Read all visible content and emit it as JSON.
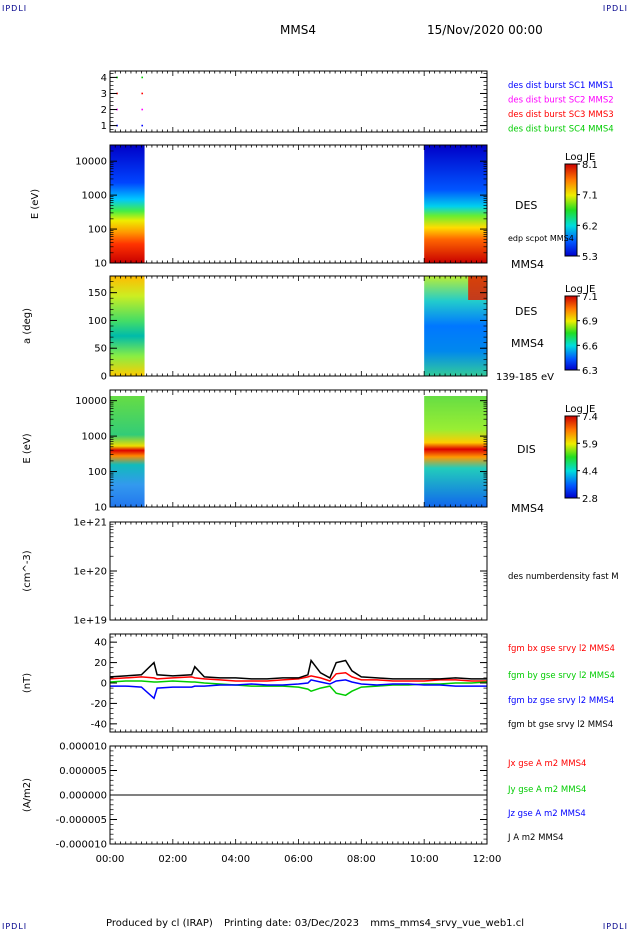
{
  "corners": {
    "tl": "IPDLI",
    "tr": "IPDLI",
    "bl": "IPDLI",
    "br": "IPDLI"
  },
  "header": {
    "spacecraft": "MMS4",
    "datetime": "15/Nov/2020 00:00"
  },
  "footer": {
    "produced_by": "Produced by cl (IRAP)",
    "printing_date": "Printing date: 03/Dec/2023",
    "filename": "mms_mms4_srvy_vue_web1.cl"
  },
  "colors": {
    "red": "#ff0000",
    "green": "#00cc00",
    "blue": "#0000ff",
    "magenta": "#ff00ff",
    "black": "#000000",
    "background": "#ffffff"
  },
  "chart_data": [
    {
      "type": "scatter",
      "panel": "burst-availability",
      "yticks": [
        "1",
        "2",
        "3",
        "4"
      ],
      "ylim": [
        0.6,
        4.4
      ],
      "series": [
        {
          "name": "des dist burst SC1 MMS1",
          "color": "#0000ff",
          "y": 1,
          "x_hours": [
            0.2,
            1.0
          ]
        },
        {
          "name": "des dist burst SC2 MMS2",
          "color": "#ff00ff",
          "y": 2,
          "x_hours": [
            0.2,
            1.0
          ]
        },
        {
          "name": "des dist burst SC3 MMS3",
          "color": "#ff0000",
          "y": 3,
          "x_hours": [
            0.2,
            1.0
          ]
        },
        {
          "name": "des dist burst SC4 MMS4",
          "color": "#00cc00",
          "y": 4,
          "x_hours": [
            0.2,
            1.0
          ]
        }
      ]
    },
    {
      "type": "heatmap",
      "panel": "des-energy",
      "ylabel": "E (eV)",
      "yscale": "log",
      "ylim": [
        10,
        30000
      ],
      "yticks": [
        "10",
        "100",
        "1000",
        "10000"
      ],
      "data_intervals_hours": [
        [
          0.0,
          1.1
        ],
        [
          10.0,
          12.0
        ]
      ],
      "labels": [
        "DES",
        "edp scpot MMS4",
        "MMS4"
      ],
      "colorbar": {
        "title": "Log JE",
        "ticks": [
          "8.1",
          "7.1",
          "6.2",
          "5.3"
        ]
      }
    },
    {
      "type": "heatmap",
      "panel": "des-pitch-angle",
      "ylabel": "a (deg)",
      "ylim": [
        0,
        180
      ],
      "yticks": [
        "0",
        "50",
        "100",
        "150"
      ],
      "data_intervals_hours": [
        [
          0.0,
          1.1
        ],
        [
          10.0,
          12.0
        ]
      ],
      "labels": [
        "DES",
        "MMS4",
        "139-185 eV"
      ],
      "colorbar": {
        "title": "Log JE",
        "ticks": [
          "7.1",
          "6.9",
          "6.6",
          "6.3"
        ]
      }
    },
    {
      "type": "heatmap",
      "panel": "dis-energy",
      "ylabel": "E (eV)",
      "yscale": "log",
      "ylim": [
        10,
        20000
      ],
      "yticks": [
        "10",
        "100",
        "1000",
        "10000"
      ],
      "data_intervals_hours": [
        [
          0.0,
          1.1
        ],
        [
          10.0,
          12.0
        ]
      ],
      "labels": [
        "DIS",
        "MMS4"
      ],
      "colorbar": {
        "title": "Log JE",
        "ticks": [
          "7.4",
          "5.9",
          "4.4",
          "2.8"
        ]
      }
    },
    {
      "type": "line",
      "panel": "density",
      "ylabel": "(cm^-3)",
      "yscale": "log",
      "ylim": [
        1e+19,
        1e+21
      ],
      "yticks": [
        "1e+19",
        "1e+20",
        "1e+21"
      ],
      "series": [
        {
          "name": "des numberdensity fast M",
          "color": "#000000",
          "x": [],
          "y": []
        }
      ]
    },
    {
      "type": "line",
      "panel": "magnetic-field",
      "ylabel": "(nT)",
      "ylim": [
        -48,
        48
      ],
      "yticks": [
        "-40",
        "-20",
        "0",
        "20",
        "40"
      ],
      "x_hours": [
        0,
        0.5,
        1.0,
        1.4,
        1.5,
        2.0,
        2.6,
        2.7,
        3.0,
        3.5,
        4.0,
        4.5,
        5.0,
        5.5,
        6.0,
        6.3,
        6.4,
        6.7,
        7.0,
        7.2,
        7.5,
        7.7,
        8.0,
        8.5,
        9.0,
        9.5,
        10.0,
        10.5,
        11.0,
        11.5,
        12.0
      ],
      "series": [
        {
          "name": "fgm bx gse srvy l2 MMS4",
          "color": "#ff0000",
          "values": [
            4,
            5,
            6,
            5,
            4,
            5,
            6,
            5,
            4,
            3,
            2,
            2,
            2,
            3,
            4,
            6,
            7,
            5,
            2,
            9,
            10,
            6,
            3,
            3,
            2,
            2,
            2,
            3,
            3,
            2,
            2
          ]
        },
        {
          "name": "fgm by gse srvy l2 MMS4",
          "color": "#00cc00",
          "values": [
            1,
            2,
            2,
            1,
            1,
            2,
            1,
            1,
            0,
            -1,
            -2,
            -3,
            -3,
            -3,
            -4,
            -6,
            -8,
            -5,
            -3,
            -10,
            -12,
            -8,
            -4,
            -3,
            -2,
            -2,
            -1,
            -1,
            0,
            0,
            1
          ]
        },
        {
          "name": "fgm bz gse srvy l2 MMS4",
          "color": "#0000ff",
          "values": [
            -3,
            -3,
            -4,
            -15,
            -5,
            -4,
            -4,
            -3,
            -3,
            -2,
            -2,
            -1,
            -2,
            -2,
            -1,
            0,
            3,
            1,
            -1,
            2,
            3,
            1,
            -1,
            -2,
            -1,
            -1,
            -2,
            -2,
            -3,
            -3,
            -3
          ]
        },
        {
          "name": "fgm bt gse srvy l2 MMS4",
          "color": "#000000",
          "values": [
            6,
            7,
            8,
            20,
            8,
            7,
            8,
            16,
            6,
            5,
            5,
            4,
            4,
            5,
            5,
            8,
            22,
            10,
            5,
            20,
            22,
            12,
            6,
            5,
            4,
            4,
            4,
            4,
            5,
            4,
            4
          ]
        }
      ]
    },
    {
      "type": "line",
      "panel": "current-density",
      "ylabel": "(A/m2)",
      "ylim": [
        -1e-05,
        1e-05
      ],
      "yticks": [
        "-0.000010",
        "-0.000005",
        "0.000000",
        "0.000005",
        "0.000010"
      ],
      "xticks": [
        "00:00",
        "02:00",
        "04:00",
        "06:00",
        "08:00",
        "10:00",
        "12:00"
      ],
      "xlim_hours": [
        0,
        12
      ],
      "x_hours": [
        0,
        2.6,
        6.4,
        7.6,
        12
      ],
      "series": [
        {
          "name": "Jx gse A m2 MMS4",
          "color": "#ff0000",
          "values": [
            0,
            0,
            0,
            0,
            0
          ]
        },
        {
          "name": "Jy gse A m2 MMS4",
          "color": "#00cc00",
          "values": [
            0,
            0,
            0,
            0,
            0
          ]
        },
        {
          "name": "Jz gse A m2 MMS4",
          "color": "#0000ff",
          "values": [
            0,
            0,
            0,
            0,
            0
          ]
        },
        {
          "name": "J A m2 MMS4",
          "color": "#000000",
          "values": [
            0,
            0,
            0,
            0,
            0
          ]
        }
      ]
    }
  ]
}
